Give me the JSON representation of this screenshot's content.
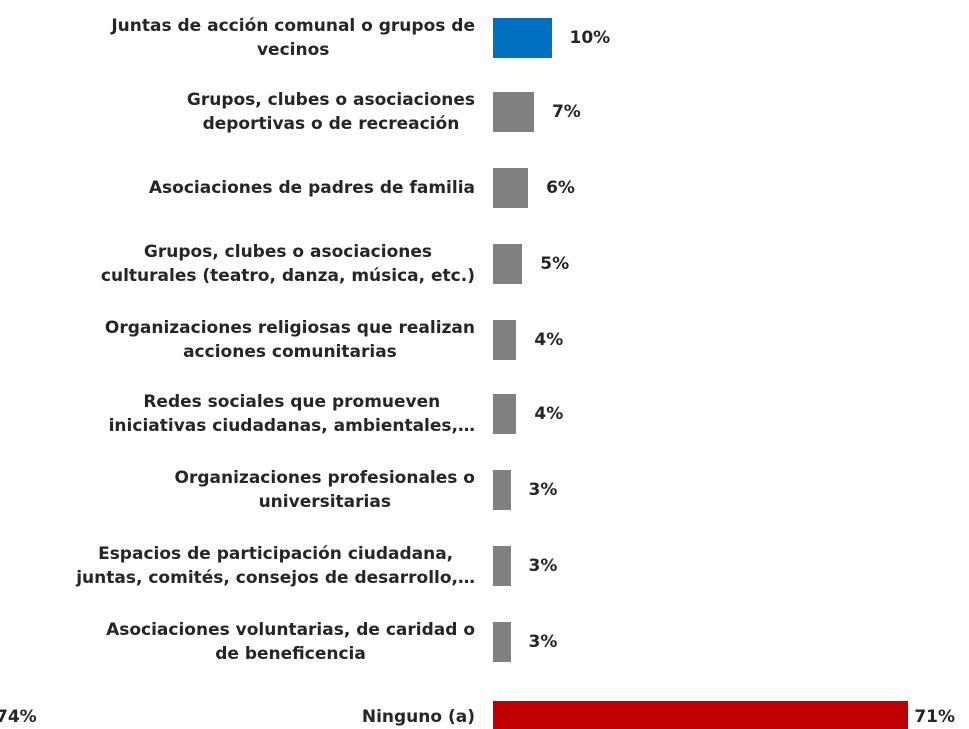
{
  "chart_data": {
    "type": "bar",
    "orientation": "horizontal",
    "categories": [
      "Juntas de acción comunal o grupos de\nvecinos",
      "Grupos, clubes o asociaciones\ndeportivas o de recreación",
      "Asociaciones de padres de familia",
      "Grupos, clubes o asociaciones\nculturales (teatro, danza, música, etc.)",
      "Organizaciones religiosas que realizan\nacciones comunitarias",
      "Redes sociales que promueven\niniciativas ciudadanas, ambientales,…",
      "Organizaciones profesionales o\nuniversitarias",
      "Espacios de participación ciudadana,\njuntas, comités, consejos de desarrollo,…",
      "Asociaciones voluntarias, de caridad o\nde beneficencia",
      "Ninguno (a)"
    ],
    "values": [
      10,
      7,
      6,
      5,
      4,
      4,
      3,
      3,
      3,
      71
    ],
    "value_labels": [
      "10%",
      "7%",
      "6%",
      "5%",
      "4%",
      "4%",
      "3%",
      "3%",
      "3%",
      "71%"
    ],
    "colors": [
      "#0070c0",
      "#808080",
      "#808080",
      "#808080",
      "#808080",
      "#808080",
      "#808080",
      "#808080",
      "#808080",
      "#c00000"
    ],
    "annotations": [
      "74%"
    ]
  }
}
